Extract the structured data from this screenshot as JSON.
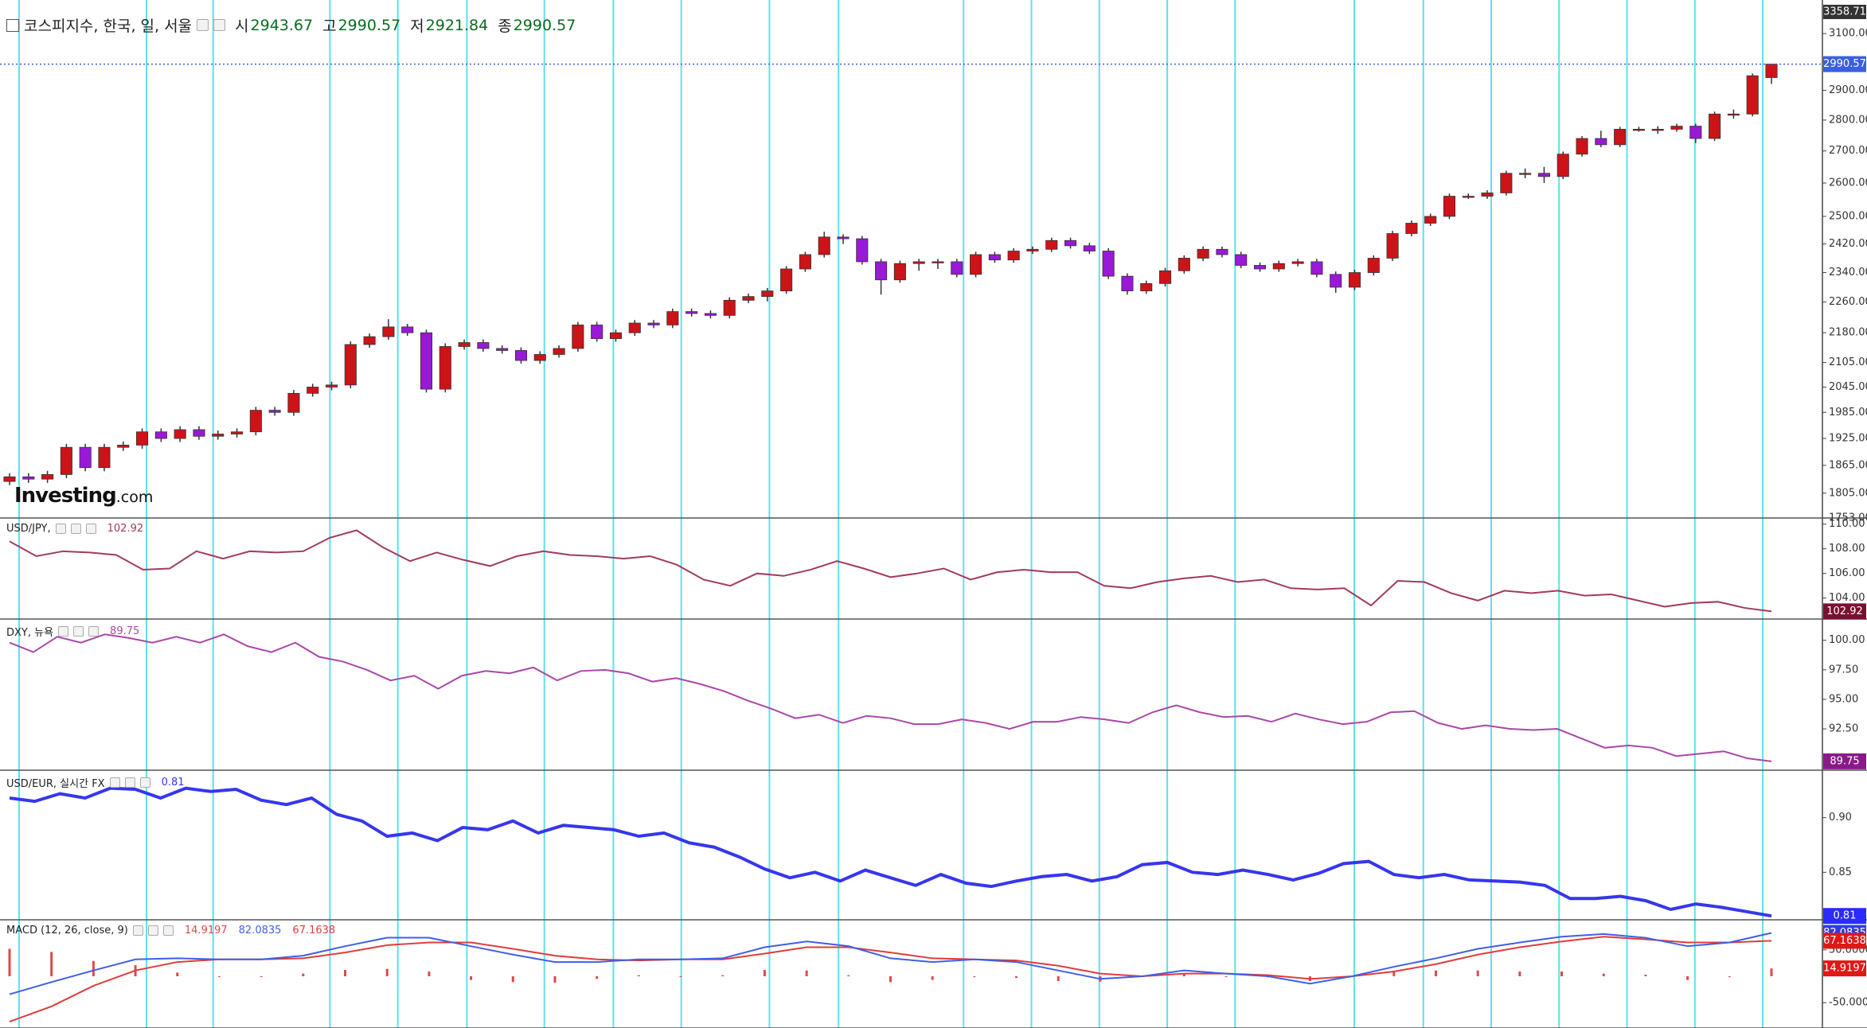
{
  "logo": [
    "Investing",
    ".com"
  ],
  "chart_data": [
    {
      "type": "candlestick",
      "title": "코스피지수, 한국, 일, 서울",
      "ohlc_labels": [
        "시",
        "고",
        "저",
        "종"
      ],
      "top_label": "3358.71",
      "up_color": "#cc1418",
      "down_color": "#9a18d8",
      "log": true,
      "ylim": [
        1753,
        3225
      ],
      "yticks": [
        {
          "value": 1753,
          "label": "1753.00"
        },
        {
          "value": 1805,
          "label": "1805.00"
        },
        {
          "value": 1865,
          "label": "1865.00"
        },
        {
          "value": 1925,
          "label": "1925.00"
        },
        {
          "value": 1985,
          "label": "1985.00"
        },
        {
          "value": 2045,
          "label": "2045.00"
        },
        {
          "value": 2105,
          "label": "2105.00"
        },
        {
          "value": 2180,
          "label": "2180.00"
        },
        {
          "value": 2260,
          "label": "2260.00"
        },
        {
          "value": 2340,
          "label": "2340.00"
        },
        {
          "value": 2420,
          "label": "2420.00"
        },
        {
          "value": 2500,
          "label": "2500.00"
        },
        {
          "value": 2600,
          "label": "2600.00"
        },
        {
          "value": 2700,
          "label": "2700.00"
        },
        {
          "value": 2800,
          "label": "2800.00"
        },
        {
          "value": 2900,
          "label": "2900.00"
        },
        {
          "value": 3100,
          "label": "3100.00"
        }
      ],
      "open": [
        1830,
        1840,
        1835,
        1845,
        1905,
        1860,
        1905,
        1910,
        1940,
        1925,
        1945,
        1930,
        1935,
        1940,
        1990,
        1985,
        2030,
        2045,
        2050,
        2150,
        2170,
        2195,
        2180,
        2040,
        2145,
        2155,
        2140,
        2135,
        2110,
        2125,
        2140,
        2200,
        2165,
        2180,
        2205,
        2200,
        2235,
        2230,
        2225,
        2265,
        2275,
        2290,
        2350,
        2390,
        2440,
        2435,
        2370,
        2320,
        2365,
        2370,
        2370,
        2335,
        2390,
        2375,
        2400,
        2405,
        2430,
        2415,
        2400,
        2330,
        2290,
        2310,
        2345,
        2380,
        2405,
        2390,
        2360,
        2350,
        2365,
        2370,
        2335,
        2300,
        2340,
        2380,
        2450,
        2480,
        2500,
        2560,
        2560,
        2570,
        2630,
        2630,
        2620,
        2690,
        2740,
        2720,
        2770,
        2770,
        2770,
        2780,
        2740,
        2820,
        2820,
        2943.67
      ],
      "high": [
        1848,
        1848,
        1853,
        1913,
        1913,
        1913,
        1918,
        1948,
        1948,
        1953,
        1953,
        1943,
        1948,
        1998,
        1998,
        2038,
        2053,
        2058,
        2158,
        2178,
        2215,
        2203,
        2188,
        2153,
        2163,
        2163,
        2148,
        2143,
        2133,
        2148,
        2208,
        2208,
        2188,
        2213,
        2213,
        2243,
        2243,
        2238,
        2273,
        2283,
        2298,
        2358,
        2398,
        2455,
        2448,
        2443,
        2378,
        2373,
        2378,
        2378,
        2378,
        2398,
        2398,
        2408,
        2413,
        2438,
        2438,
        2423,
        2408,
        2338,
        2318,
        2353,
        2388,
        2413,
        2413,
        2398,
        2368,
        2373,
        2378,
        2378,
        2343,
        2348,
        2388,
        2458,
        2488,
        2508,
        2568,
        2568,
        2578,
        2638,
        2645,
        2650,
        2698,
        2748,
        2765,
        2778,
        2778,
        2780,
        2788,
        2788,
        2828,
        2835,
        2958,
        2990.57
      ],
      "low": [
        1822,
        1827,
        1827,
        1837,
        1852,
        1852,
        1897,
        1902,
        1917,
        1917,
        1922,
        1922,
        1927,
        1932,
        1977,
        1977,
        2022,
        2037,
        2042,
        2142,
        2162,
        2172,
        2032,
        2032,
        2137,
        2132,
        2127,
        2102,
        2102,
        2117,
        2132,
        2157,
        2157,
        2172,
        2192,
        2192,
        2222,
        2217,
        2217,
        2257,
        2262,
        2282,
        2342,
        2382,
        2420,
        2362,
        2280,
        2312,
        2345,
        2350,
        2327,
        2327,
        2367,
        2367,
        2392,
        2397,
        2407,
        2392,
        2322,
        2280,
        2282,
        2302,
        2337,
        2372,
        2382,
        2352,
        2342,
        2342,
        2357,
        2327,
        2285,
        2292,
        2332,
        2372,
        2442,
        2472,
        2492,
        2552,
        2552,
        2562,
        2615,
        2600,
        2612,
        2682,
        2712,
        2712,
        2762,
        2755,
        2762,
        2725,
        2732,
        2805,
        2812,
        2921.84
      ],
      "close": [
        1840,
        1835,
        1845,
        1905,
        1860,
        1905,
        1910,
        1940,
        1925,
        1945,
        1930,
        1935,
        1940,
        1990,
        1985,
        2030,
        2045,
        2050,
        2150,
        2170,
        2195,
        2180,
        2040,
        2145,
        2155,
        2140,
        2135,
        2110,
        2125,
        2140,
        2200,
        2165,
        2180,
        2205,
        2200,
        2235,
        2230,
        2225,
        2265,
        2275,
        2290,
        2350,
        2390,
        2440,
        2435,
        2370,
        2320,
        2365,
        2370,
        2370,
        2335,
        2390,
        2375,
        2400,
        2405,
        2430,
        2415,
        2400,
        2330,
        2290,
        2310,
        2345,
        2380,
        2405,
        2390,
        2360,
        2350,
        2365,
        2370,
        2335,
        2300,
        2340,
        2380,
        2450,
        2480,
        2500,
        2560,
        2560,
        2570,
        2630,
        2630,
        2620,
        2690,
        2740,
        2720,
        2770,
        2770,
        2770,
        2780,
        2740,
        2820,
        2820,
        2950,
        2990.57
      ],
      "last_color": "#3b5fe0"
    },
    {
      "type": "line",
      "title": "USD/JPY,",
      "ylim": [
        102.3,
        110.5
      ],
      "yticks": [
        {
          "value": 104,
          "label": "104.00"
        },
        {
          "value": 106,
          "label": "106.00"
        },
        {
          "value": 108,
          "label": "108.00"
        },
        {
          "value": 110,
          "label": "110.00"
        }
      ],
      "series": [
        {
          "color": "#a23a5e",
          "badge_color": "#7a1030",
          "values": [
            108.6,
            107.4,
            107.8,
            107.7,
            107.5,
            106.3,
            106.4,
            107.8,
            107.2,
            107.8,
            107.7,
            107.8,
            108.9,
            109.5,
            108.1,
            107.0,
            107.7,
            107.1,
            106.6,
            107.4,
            107.8,
            107.5,
            107.4,
            107.2,
            107.4,
            106.7,
            105.5,
            105.0,
            106.0,
            105.8,
            106.3,
            107.0,
            106.4,
            105.7,
            106.0,
            106.4,
            105.5,
            106.1,
            106.3,
            106.1,
            106.1,
            105.0,
            104.8,
            105.3,
            105.6,
            105.8,
            105.3,
            105.5,
            104.8,
            104.7,
            104.8,
            103.4,
            105.4,
            105.3,
            104.4,
            103.8,
            104.6,
            104.4,
            104.6,
            104.2,
            104.3,
            103.8,
            103.3,
            103.6,
            103.7,
            103.2,
            102.92
          ]
        }
      ]
    },
    {
      "type": "line",
      "title": "DXY, 뉴욕",
      "ylim": [
        89.0,
        101.8
      ],
      "yticks": [
        {
          "value": 92.5,
          "label": "92.50"
        },
        {
          "value": 95,
          "label": "95.00"
        },
        {
          "value": 97.5,
          "label": "97.50"
        },
        {
          "value": 100,
          "label": "100.00"
        }
      ],
      "series": [
        {
          "color": "#a848a8",
          "badge_color": "#8a1a8a",
          "values": [
            99.8,
            99.0,
            100.3,
            99.8,
            100.5,
            100.2,
            99.8,
            100.3,
            99.8,
            100.5,
            99.5,
            99.0,
            99.8,
            98.6,
            98.2,
            97.5,
            96.6,
            97.0,
            95.9,
            97.0,
            97.4,
            97.2,
            97.7,
            96.6,
            97.4,
            97.5,
            97.2,
            96.5,
            96.8,
            96.3,
            95.7,
            94.9,
            94.2,
            93.4,
            93.7,
            93.0,
            93.6,
            93.4,
            92.9,
            92.9,
            93.3,
            93.0,
            92.5,
            93.1,
            93.1,
            93.5,
            93.3,
            93.0,
            93.9,
            94.5,
            93.9,
            93.5,
            93.6,
            93.1,
            93.8,
            93.3,
            92.9,
            93.1,
            93.9,
            94.0,
            93.0,
            92.5,
            92.8,
            92.5,
            92.4,
            92.5,
            91.7,
            90.9,
            91.1,
            90.9,
            90.2,
            90.4,
            90.6,
            90.0,
            89.75
          ]
        }
      ]
    },
    {
      "type": "line",
      "title": "USD/EUR, 실시간 FX",
      "ylim": [
        0.8065,
        0.9435
      ],
      "yticks": [
        0.85,
        {
          "value": 0.9,
          "label": "0.90"
        }
      ],
      "series": [
        {
          "color": "#3636ee",
          "badge_color": "#2b2bff",
          "width": 4,
          "values": [
            0.918,
            0.915,
            0.922,
            0.918,
            0.927,
            0.926,
            0.918,
            0.927,
            0.924,
            0.926,
            0.916,
            0.912,
            0.918,
            0.903,
            0.897,
            0.883,
            0.886,
            0.879,
            0.891,
            0.889,
            0.897,
            0.886,
            0.893,
            0.891,
            0.889,
            0.883,
            0.886,
            0.877,
            0.873,
            0.864,
            0.853,
            0.845,
            0.85,
            0.842,
            0.852,
            0.845,
            0.838,
            0.848,
            0.84,
            0.837,
            0.842,
            0.846,
            0.848,
            0.842,
            0.846,
            0.857,
            0.859,
            0.85,
            0.848,
            0.852,
            0.848,
            0.843,
            0.849,
            0.858,
            0.86,
            0.848,
            0.845,
            0.848,
            0.843,
            0.842,
            0.841,
            0.838,
            0.826,
            0.826,
            0.828,
            0.824,
            0.816,
            0.821,
            0.818,
            0.814,
            0.81
          ]
        }
      ]
    },
    {
      "type": "macd",
      "title": "MACD (12, 26, close, 9)",
      "ylim": [
        -98,
        107
      ],
      "yticks": [
        {
          "value": -50,
          "label": "-50.0000"
        },
        {
          "value": 50,
          "label": "50.0000"
        }
      ],
      "series": [
        {
          "color": "#3f5fe6",
          "badge_color": "#2b3fe0",
          "values": [
            -34,
            -11,
            11,
            32,
            34,
            32,
            32,
            39,
            57,
            73,
            73,
            57,
            41,
            27,
            27,
            32,
            32,
            34,
            55,
            66,
            57,
            34,
            27,
            32,
            27,
            11,
            -5,
            0,
            11,
            5,
            0,
            -14,
            0,
            18,
            34,
            52,
            64,
            75,
            80,
            73,
            57,
            64,
            82.0835
          ]
        },
        {
          "color": "#e23b3b",
          "badge_color": "#e01818",
          "values": [
            -86,
            -57,
            -18,
            11,
            27,
            32,
            32,
            34,
            45,
            59,
            64,
            64,
            52,
            39,
            32,
            30,
            32,
            32,
            43,
            55,
            55,
            45,
            34,
            32,
            30,
            20,
            5,
            0,
            5,
            5,
            2,
            -5,
            0,
            9,
            23,
            41,
            55,
            66,
            75,
            70,
            64,
            64,
            67.1638
          ]
        },
        {
          "color": "#e04848",
          "badge_color": "#e01818",
          "values": [
            52,
            46,
            29,
            21,
            7,
            0,
            0,
            5,
            12,
            14,
            9,
            -7,
            -11,
            -12,
            -5,
            2,
            0,
            2,
            12,
            11,
            2,
            -11,
            -7,
            0,
            -3,
            -9,
            -10,
            0,
            6,
            0,
            -2,
            -9,
            0,
            9,
            11,
            11,
            9,
            9,
            5,
            3,
            -7,
            0,
            14.9197
          ]
        }
      ]
    }
  ]
}
